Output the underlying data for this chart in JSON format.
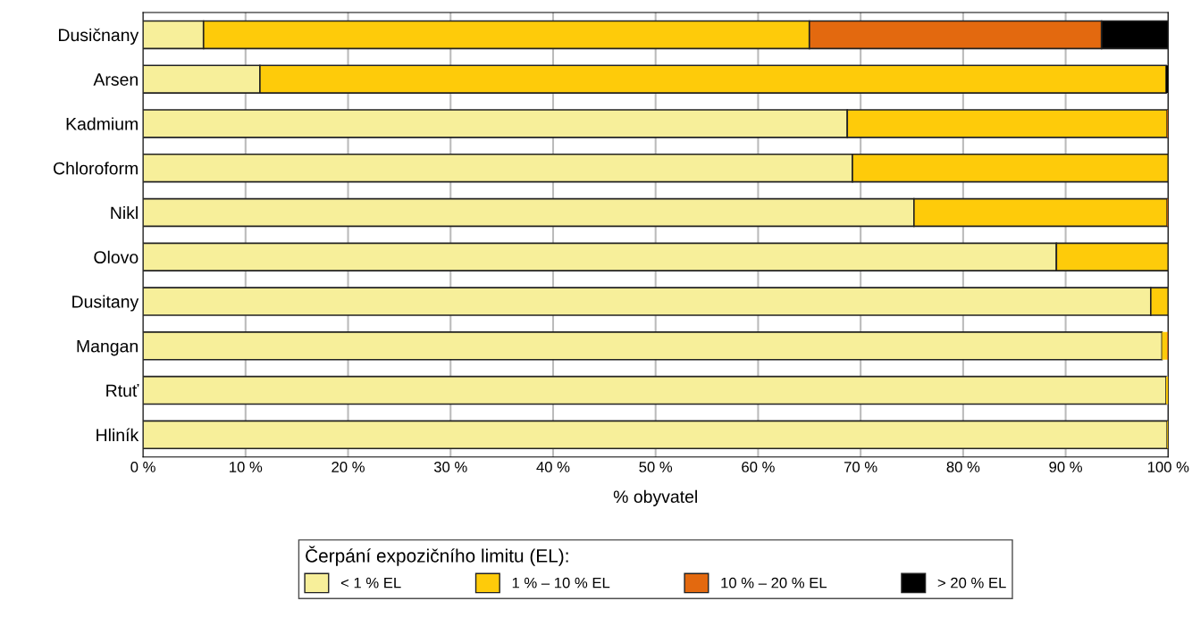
{
  "chart_data": {
    "type": "bar",
    "orientation": "horizontal",
    "stacked": true,
    "categories": [
      "Dusičnany",
      "Arsen",
      "Kadmium",
      "Chloroform",
      "Nikl",
      "Olovo",
      "Dusitany",
      "Mangan",
      "Rtuť",
      "Hliník"
    ],
    "series": [
      {
        "name": "< 1 % EL",
        "color": "#f7ef9a",
        "values": [
          5.9,
          11.4,
          68.7,
          69.2,
          75.2,
          89.1,
          98.3,
          99.4,
          99.8,
          99.9
        ]
      },
      {
        "name": "1 % – 10 % EL",
        "color": "#fecb0a",
        "values": [
          59.1,
          88.4,
          31.2,
          30.8,
          24.7,
          10.9,
          1.7,
          0.5,
          0.2,
          0.1
        ]
      },
      {
        "name": "10 % – 20 % EL",
        "color": "#e3690f",
        "values": [
          28.5,
          0,
          0.1,
          0,
          0.1,
          0,
          0,
          0.1,
          0,
          0
        ]
      },
      {
        "name": "> 20 % EL",
        "color": "#000000",
        "values": [
          6.5,
          0.2,
          0,
          0,
          0,
          0,
          0,
          0,
          0,
          0
        ]
      }
    ],
    "xlabel": "% obyvatel",
    "legend_title": "Čerpání expozičního limitu (EL):",
    "legend": "bottom",
    "grid": "x",
    "xlim": [
      0,
      100
    ],
    "xticks": [
      {
        "value": 0,
        "label": "0 %"
      },
      {
        "value": 10,
        "label": "10 %"
      },
      {
        "value": 20,
        "label": "20 %"
      },
      {
        "value": 30,
        "label": "30 %"
      },
      {
        "value": 40,
        "label": "40 %"
      },
      {
        "value": 50,
        "label": "50 %"
      },
      {
        "value": 60,
        "label": "60 %"
      },
      {
        "value": 70,
        "label": "70 %"
      },
      {
        "value": 80,
        "label": "80 %"
      },
      {
        "value": 90,
        "label": "90 %"
      },
      {
        "value": 100,
        "label": "100 %"
      }
    ]
  }
}
